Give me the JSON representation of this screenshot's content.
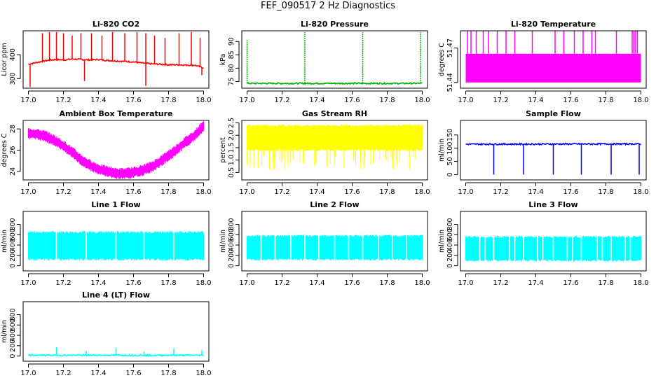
{
  "figure_title": "FEF_090517  2 Hz Diagnostics",
  "chart_data": [
    {
      "id": "co2",
      "type": "line",
      "title": "Li-820 CO2",
      "ylabel": "Licor ppm",
      "color": "#ff0000",
      "xlim": [
        16.97,
        18.03
      ],
      "ylim": [
        260,
        500
      ],
      "xticks": [
        17.0,
        17.2,
        17.4,
        17.6,
        17.8,
        18.0
      ],
      "xtick_labels": [
        "17.0",
        "17.2",
        "17.4",
        "17.6",
        "17.8",
        "18.0"
      ],
      "yticks": [
        300,
        400
      ],
      "ytick_labels": [
        "300",
        "400"
      ],
      "x": [
        17.0,
        17.05,
        17.1,
        17.15,
        17.2,
        17.25,
        17.3,
        17.35,
        17.4,
        17.45,
        17.5,
        17.55,
        17.6,
        17.65,
        17.7,
        17.75,
        17.8,
        17.85,
        17.9,
        17.95,
        18.0
      ],
      "y": [
        360,
        368,
        375,
        380,
        378,
        382,
        380,
        378,
        380,
        376,
        374,
        372,
        370,
        365,
        362,
        360,
        358,
        358,
        357,
        356,
        345
      ],
      "spikes_up": [
        17.08,
        17.12,
        17.16,
        17.2,
        17.25,
        17.3,
        17.36,
        17.42,
        17.48,
        17.55,
        17.62,
        17.67,
        17.72,
        17.78,
        17.86,
        17.93,
        17.98
      ],
      "spike_top": [
        490,
        495,
        495,
        490,
        480,
        490,
        490,
        480,
        495,
        490,
        495,
        490,
        480,
        470,
        490,
        495,
        470
      ],
      "spikes_down": [
        17.01,
        17.32,
        17.67,
        17.99
      ],
      "spike_bottom": [
        265,
        290,
        270,
        315
      ]
    },
    {
      "id": "pressure",
      "type": "line",
      "title": "Li-820 Pressure",
      "ylabel": "kPa",
      "color": "#00b000",
      "xlim": [
        16.97,
        18.03
      ],
      "ylim": [
        72.5,
        94
      ],
      "xticks": [
        17.0,
        17.2,
        17.4,
        17.6,
        17.8,
        18.0
      ],
      "xtick_labels": [
        "17.0",
        "17.2",
        "17.4",
        "17.6",
        "17.8",
        "18.0"
      ],
      "yticks": [
        75,
        80,
        85,
        90
      ],
      "ytick_labels": [
        "75",
        "80",
        "85",
        "90"
      ],
      "x": [
        17.0,
        18.0
      ],
      "y": [
        74.3,
        74.3
      ],
      "spikes_up": [
        17.0,
        17.33,
        17.66,
        17.99
      ],
      "spike_top": [
        90.5,
        93.5,
        93.5,
        93.5
      ]
    },
    {
      "id": "temperature",
      "type": "line",
      "title": "Li-820 Temperature",
      "ylabel": "degrees C",
      "color": "#ff00ff",
      "xlim": [
        16.97,
        18.03
      ],
      "ylim": [
        51.435,
        51.485
      ],
      "xticks": [
        17.0,
        17.2,
        17.4,
        17.6,
        17.8,
        18.0
      ],
      "xtick_labels": [
        "17.0",
        "17.2",
        "17.4",
        "17.6",
        "17.8",
        "18.0"
      ],
      "yticks": [
        51.44,
        51.47
      ],
      "ytick_labels": [
        "51.44",
        "51.47"
      ],
      "band": [
        51.44,
        51.465
      ],
      "spikes_up": [
        17.01,
        17.03,
        17.06,
        17.1,
        17.13,
        17.18,
        17.23,
        17.28,
        17.38,
        17.51,
        17.56,
        17.62,
        17.67,
        17.72,
        17.74,
        17.86,
        17.95,
        17.96,
        17.97,
        17.98
      ],
      "spike_top": 51.485
    },
    {
      "id": "ambient",
      "type": "line",
      "title": "Ambient Box Temperature",
      "ylabel": "degrees C",
      "color": "#ff00ff",
      "xlim": [
        16.97,
        18.03
      ],
      "ylim": [
        23.2,
        28.8
      ],
      "xticks": [
        17.0,
        17.2,
        17.4,
        17.6,
        17.8,
        18.0
      ],
      "xtick_labels": [
        "17.0",
        "17.2",
        "17.4",
        "17.6",
        "17.8",
        "18.0"
      ],
      "yticks": [
        24,
        26,
        28
      ],
      "ytick_labels": [
        "24",
        "26",
        "28"
      ],
      "x": [
        17.0,
        17.05,
        17.1,
        17.15,
        17.2,
        17.25,
        17.3,
        17.35,
        17.4,
        17.45,
        17.5,
        17.55,
        17.6,
        17.65,
        17.7,
        17.75,
        17.8,
        17.85,
        17.9,
        17.95,
        18.0
      ],
      "y": [
        27.6,
        27.5,
        27.3,
        26.9,
        26.4,
        25.8,
        25.1,
        24.6,
        24.2,
        24.0,
        23.8,
        23.8,
        23.9,
        24.1,
        24.4,
        24.9,
        25.5,
        26.1,
        26.8,
        27.4,
        28.3
      ],
      "band_half": 0.45
    },
    {
      "id": "rh",
      "type": "line",
      "title": "Gas Stream RH",
      "ylabel": "percent",
      "color": "#ffff00",
      "xlim": [
        16.97,
        18.03
      ],
      "ylim": [
        0.2,
        2.6
      ],
      "xticks": [
        17.0,
        17.2,
        17.4,
        17.6,
        17.8,
        18.0
      ],
      "xtick_labels": [
        "17.0",
        "17.2",
        "17.4",
        "17.6",
        "17.8",
        "18.0"
      ],
      "yticks": [
        0.5,
        1.0,
        1.5,
        2.0,
        2.5
      ],
      "ytick_labels": [
        "0.5",
        "1.0",
        "1.5",
        "2.0",
        "2.5"
      ],
      "band": [
        1.4,
        2.4
      ],
      "dip_bottom": 0.6
    },
    {
      "id": "sample",
      "type": "line",
      "title": "Sample Flow",
      "ylabel": "ml/min",
      "color": "#0000ff",
      "xlim": [
        16.97,
        18.03
      ],
      "ylim": [
        -20,
        205
      ],
      "xticks": [
        17.0,
        17.2,
        17.4,
        17.6,
        17.8,
        18.0
      ],
      "xtick_labels": [
        "17.0",
        "17.2",
        "17.4",
        "17.6",
        "17.8",
        "18.0"
      ],
      "yticks": [
        0,
        50,
        100,
        150
      ],
      "ytick_labels": [
        "0",
        "50",
        "100",
        "150"
      ],
      "x": [
        17.0,
        18.0
      ],
      "y": [
        115,
        116
      ],
      "dips": [
        17.16,
        17.33,
        17.5,
        17.66,
        17.83,
        17.99
      ],
      "dip_bottom": 0
    },
    {
      "id": "line1",
      "type": "line",
      "title": "Line 1 Flow",
      "ylabel": "ml/min",
      "color": "#00ffff",
      "xlim": [
        16.97,
        18.03
      ],
      "ylim": [
        -100,
        1050
      ],
      "xticks": [
        17.0,
        17.2,
        17.4,
        17.6,
        17.8,
        18.0
      ],
      "xtick_labels": [
        "17.0",
        "17.2",
        "17.4",
        "17.6",
        "17.8",
        "18.0"
      ],
      "yticks": [
        0,
        200,
        400,
        600,
        800
      ],
      "ytick_labels": [
        "0",
        "200",
        "400",
        "600",
        "800"
      ],
      "band": [
        120,
        650
      ],
      "gaps": [
        17.16,
        17.33,
        17.5,
        17.66,
        17.83
      ]
    },
    {
      "id": "line2",
      "type": "line",
      "title": "Line 2 Flow",
      "ylabel": "ml/min",
      "color": "#00ffff",
      "xlim": [
        16.97,
        18.03
      ],
      "ylim": [
        -100,
        1050
      ],
      "xticks": [
        17.0,
        17.2,
        17.4,
        17.6,
        17.8,
        18.0
      ],
      "xtick_labels": [
        "17.0",
        "17.2",
        "17.4",
        "17.6",
        "17.8",
        "18.0"
      ],
      "yticks": [
        0,
        200,
        400,
        600,
        800
      ],
      "ytick_labels": [
        "0",
        "200",
        "400",
        "600",
        "800"
      ],
      "band": [
        120,
        580
      ],
      "gaps": [
        17.08,
        17.16,
        17.25,
        17.33,
        17.41,
        17.5,
        17.58,
        17.66,
        17.75,
        17.83,
        17.91
      ]
    },
    {
      "id": "line3",
      "type": "line",
      "title": "Line 3 Flow",
      "ylabel": "ml/min",
      "color": "#00ffff",
      "xlim": [
        16.97,
        18.03
      ],
      "ylim": [
        -100,
        1050
      ],
      "xticks": [
        17.0,
        17.2,
        17.4,
        17.6,
        17.8,
        18.0
      ],
      "xtick_labels": [
        "17.0",
        "17.2",
        "17.4",
        "17.6",
        "17.8",
        "18.0"
      ],
      "yticks": [
        0,
        200,
        400,
        600,
        800
      ],
      "ytick_labels": [
        "0",
        "200",
        "400",
        "600",
        "800"
      ],
      "band": [
        100,
        560
      ],
      "gaps": [
        17.08,
        17.11,
        17.16,
        17.25,
        17.28,
        17.33,
        17.41,
        17.44,
        17.5,
        17.58,
        17.61,
        17.66,
        17.75,
        17.78,
        17.83,
        17.91,
        17.94
      ]
    },
    {
      "id": "line4",
      "type": "line",
      "title": "Line 4 (LT) Flow",
      "ylabel": "ml/min",
      "color": "#00ffff",
      "xlim": [
        16.97,
        18.03
      ],
      "ylim": [
        -100,
        1050
      ],
      "xticks": [
        17.0,
        17.2,
        17.4,
        17.6,
        17.8,
        18.0
      ],
      "xtick_labels": [
        "17.0",
        "17.2",
        "17.4",
        "17.6",
        "17.8",
        "18.0"
      ],
      "yticks": [
        0,
        200,
        400,
        600,
        800
      ],
      "ytick_labels": [
        "0",
        "200",
        "400",
        "600",
        "800"
      ],
      "x": [
        17.0,
        18.0
      ],
      "y": [
        15,
        15
      ],
      "spikes_up": [
        17.16,
        17.33,
        17.5,
        17.66,
        17.83,
        17.99
      ],
      "spike_top": [
        170,
        100,
        160,
        90,
        150,
        110
      ]
    }
  ]
}
